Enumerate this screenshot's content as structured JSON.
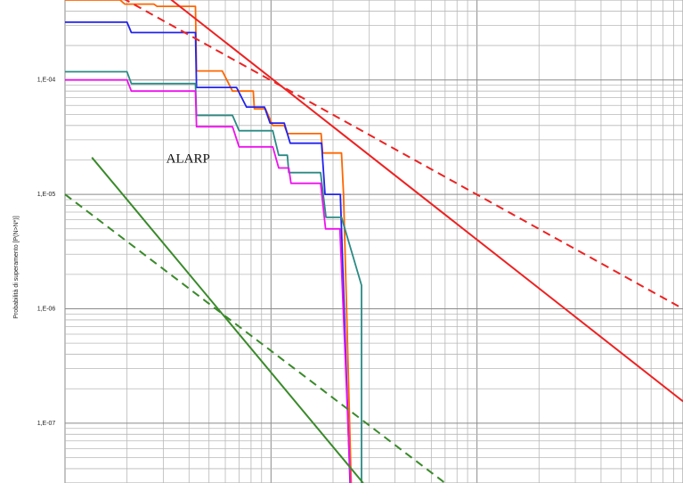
{
  "chart_data": {
    "type": "line",
    "title": "",
    "xlabel": "",
    "ylabel": "Probabilità di superamento [P(N>N*)]",
    "x_scale": "log",
    "y_scale": "log",
    "xlim": [
      1,
      1000
    ],
    "ylim": [
      3e-08,
      0.0005
    ],
    "grid": true,
    "y_ticks": [
      {
        "value": 0.0001,
        "label": "1,E-04"
      },
      {
        "value": 1e-05,
        "label": "1,E-05"
      },
      {
        "value": 1e-06,
        "label": "1,E-06"
      },
      {
        "value": 1e-07,
        "label": "1,E-07"
      }
    ],
    "annotations": [
      {
        "text": "ALARP",
        "x": 3.1,
        "y": 1.9e-05
      }
    ],
    "series": [
      {
        "color": "#ff6600",
        "style": "solid",
        "width": 1.8,
        "points": [
          [
            1,
            0.0005
          ],
          [
            1.85,
            0.0005
          ],
          [
            1.95,
            0.00046
          ],
          [
            2.7,
            0.00046
          ],
          [
            2.8,
            0.00044
          ],
          [
            4.3,
            0.00044
          ],
          [
            4.35,
            0.00012
          ],
          [
            5.8,
            0.00012
          ],
          [
            6.5,
            8e-05
          ],
          [
            8.2,
            8e-05
          ],
          [
            8.3,
            5.6e-05
          ],
          [
            9.4,
            5.6e-05
          ],
          [
            10.2,
            4e-05
          ],
          [
            11.6,
            4e-05
          ],
          [
            12,
            3.4e-05
          ],
          [
            17.5,
            3.4e-05
          ],
          [
            17.8,
            2.3e-05
          ],
          [
            22,
            2.3e-05
          ],
          [
            22.5,
            1e-05
          ],
          [
            24.5,
            3e-08
          ]
        ]
      },
      {
        "color": "#2222ee",
        "style": "solid",
        "width": 1.8,
        "points": [
          [
            1,
            0.00032
          ],
          [
            2,
            0.00032
          ],
          [
            2.1,
            0.00026
          ],
          [
            4.3,
            0.00026
          ],
          [
            4.35,
            8.6e-05
          ],
          [
            6.8,
            8.6e-05
          ],
          [
            7.6,
            5.8e-05
          ],
          [
            9.3,
            5.8e-05
          ],
          [
            9.9,
            4.2e-05
          ],
          [
            11.6,
            4.2e-05
          ],
          [
            12.4,
            2.8e-05
          ],
          [
            17.6,
            2.8e-05
          ],
          [
            18.3,
            1e-05
          ],
          [
            21.7,
            1e-05
          ],
          [
            24.2,
            3e-08
          ]
        ]
      },
      {
        "color": "#2a8a84",
        "style": "solid",
        "width": 1.8,
        "points": [
          [
            1,
            0.000118
          ],
          [
            2,
            0.000118
          ],
          [
            2.1,
            9.3e-05
          ],
          [
            4.3,
            9.3e-05
          ],
          [
            4.35,
            4.9e-05
          ],
          [
            6.5,
            4.9e-05
          ],
          [
            7,
            3.6e-05
          ],
          [
            10.2,
            3.6e-05
          ],
          [
            10.9,
            2.2e-05
          ],
          [
            12,
            2.2e-05
          ],
          [
            12.2,
            1.55e-05
          ],
          [
            17.4,
            1.55e-05
          ],
          [
            18.5,
            6.3e-06
          ],
          [
            22,
            6.3e-06
          ],
          [
            27,
            1.8e-06
          ],
          [
            27.5,
            1.6e-06
          ],
          [
            27.5,
            3e-08
          ]
        ]
      },
      {
        "color": "#ee11ee",
        "style": "solid",
        "width": 1.8,
        "points": [
          [
            1,
            0.0001
          ],
          [
            2,
            0.0001
          ],
          [
            2.1,
            8e-05
          ],
          [
            4.3,
            8e-05
          ],
          [
            4.35,
            3.9e-05
          ],
          [
            6.5,
            3.9e-05
          ],
          [
            7,
            2.6e-05
          ],
          [
            10.2,
            2.6e-05
          ],
          [
            10.9,
            1.7e-05
          ],
          [
            12.2,
            1.7e-05
          ],
          [
            12.5,
            1.25e-05
          ],
          [
            17.4,
            1.25e-05
          ],
          [
            18.4,
            5e-06
          ],
          [
            21.6,
            5e-06
          ],
          [
            24.3,
            3e-08
          ]
        ]
      },
      {
        "color": "#ee2222",
        "style": "solid",
        "width": 2,
        "points": [
          [
            3.2,
            0.00052
          ],
          [
            1000,
            1.55e-07
          ]
        ]
      },
      {
        "color": "#ee2222",
        "style": "dashed",
        "width": 2,
        "points": [
          [
            1.9,
            0.00052
          ],
          [
            1000,
            1e-06
          ]
        ]
      },
      {
        "color": "#3a8a2a",
        "style": "solid",
        "width": 2,
        "points": [
          [
            1.35,
            2.1e-05
          ],
          [
            28,
            3e-08
          ]
        ]
      },
      {
        "color": "#3a8a2a",
        "style": "dashed",
        "width": 2,
        "points": [
          [
            1,
            1e-05
          ],
          [
            70,
            3e-08
          ]
        ]
      }
    ]
  }
}
